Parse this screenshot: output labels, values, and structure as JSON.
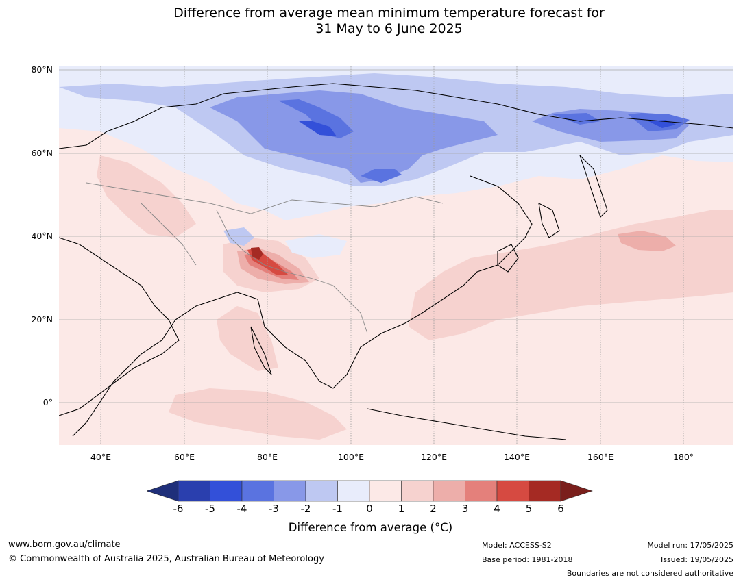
{
  "title_line1": "Difference from average mean minimum temperature forecast for",
  "title_line2": "31 May to 6 June 2025",
  "lat_labels": [
    "80°N",
    "60°N",
    "40°N",
    "20°N",
    "0°"
  ],
  "lon_labels": [
    "40°E",
    "60°E",
    "80°E",
    "100°E",
    "120°E",
    "140°E",
    "160°E",
    "180°"
  ],
  "colorbar": {
    "ticks": [
      "-6",
      "-5",
      "-4",
      "-3",
      "-2",
      "-1",
      "0",
      "1",
      "2",
      "3",
      "4",
      "5",
      "6"
    ],
    "label": "Difference from average (°C)",
    "colors": [
      "#1f2f7a",
      "#2a3fae",
      "#3350d9",
      "#5a73e0",
      "#8898e8",
      "#bec8f2",
      "#e8ecfb",
      "#fce9e7",
      "#f6d2cf",
      "#edaeaa",
      "#e4807b",
      "#d64a41",
      "#a52a23",
      "#7a1f1c"
    ]
  },
  "footer": {
    "website": "www.bom.gov.au/climate",
    "copyright": "© Commonwealth of Australia 2025, Australian Bureau of Meteorology",
    "model": "Model: ACCESS-S2",
    "base_period": "Base period: 1981-2018",
    "model_run": "Model run: 17/05/2025",
    "issued": "Issued: 19/05/2025",
    "disclaimer": "Boundaries are not considered authoritative"
  }
}
